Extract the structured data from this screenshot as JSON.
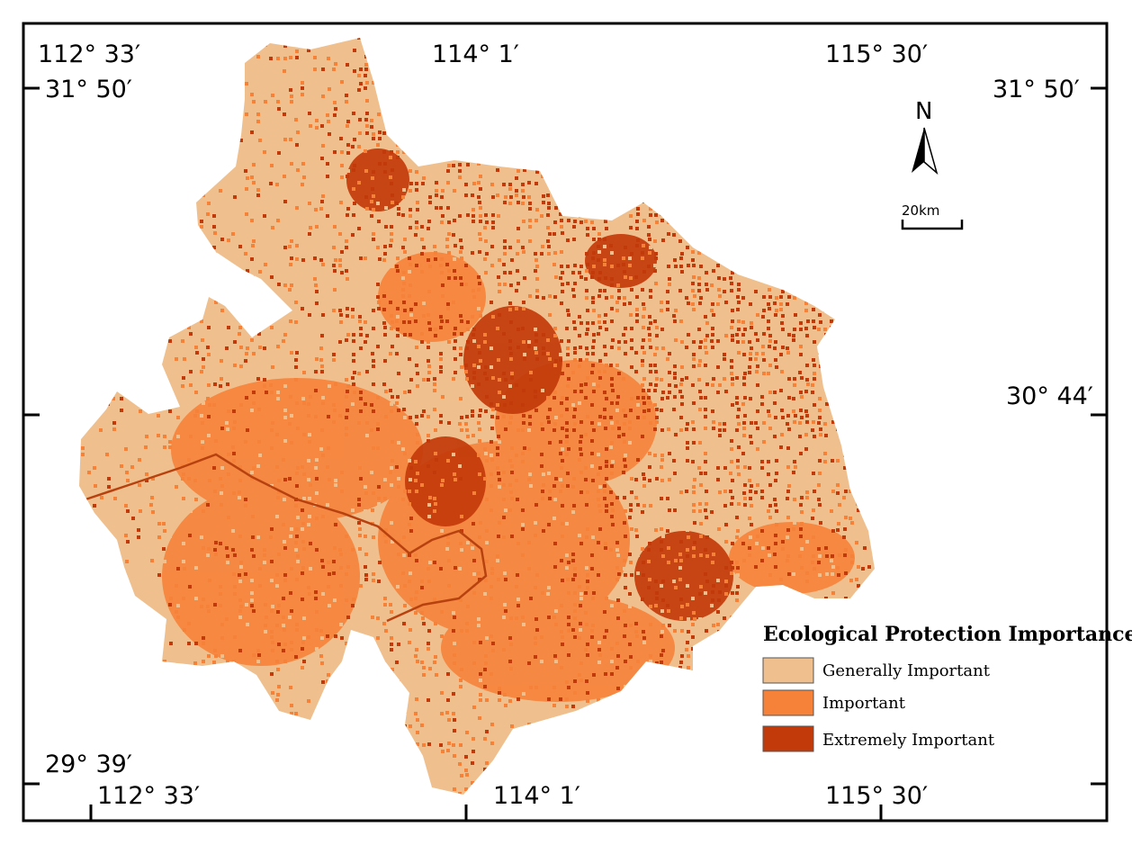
{
  "map": {
    "colors": {
      "generally_important": "#efc08e",
      "important": "#f6823a",
      "extremely_important": "#c33a0a",
      "frame": "#000000",
      "background": "#ffffff"
    },
    "coordinates": {
      "top_left_lon": "112° 33′",
      "top_mid_lon": "114° 1′",
      "top_right_lon": "115° 30′",
      "left_top_lat": "31° 50′",
      "right_top_lat": "31° 50′",
      "right_mid_lat": "30° 44′",
      "left_bottom_lat": "29° 39′",
      "bottom_left_lon": "112° 33′",
      "bottom_mid_lon": "114° 1′",
      "bottom_right_lon": "115° 30′"
    },
    "north_arrow": {
      "label": "N",
      "icon": "north-arrow-icon"
    },
    "scale_bar": {
      "label": "20km"
    },
    "legend": {
      "title": "Ecological Protection Importance",
      "items": [
        {
          "label": "Generally Important",
          "color": "#efc08e"
        },
        {
          "label": "Important",
          "color": "#f6823a"
        },
        {
          "label": "Extremely Important",
          "color": "#c33a0a"
        }
      ]
    }
  }
}
